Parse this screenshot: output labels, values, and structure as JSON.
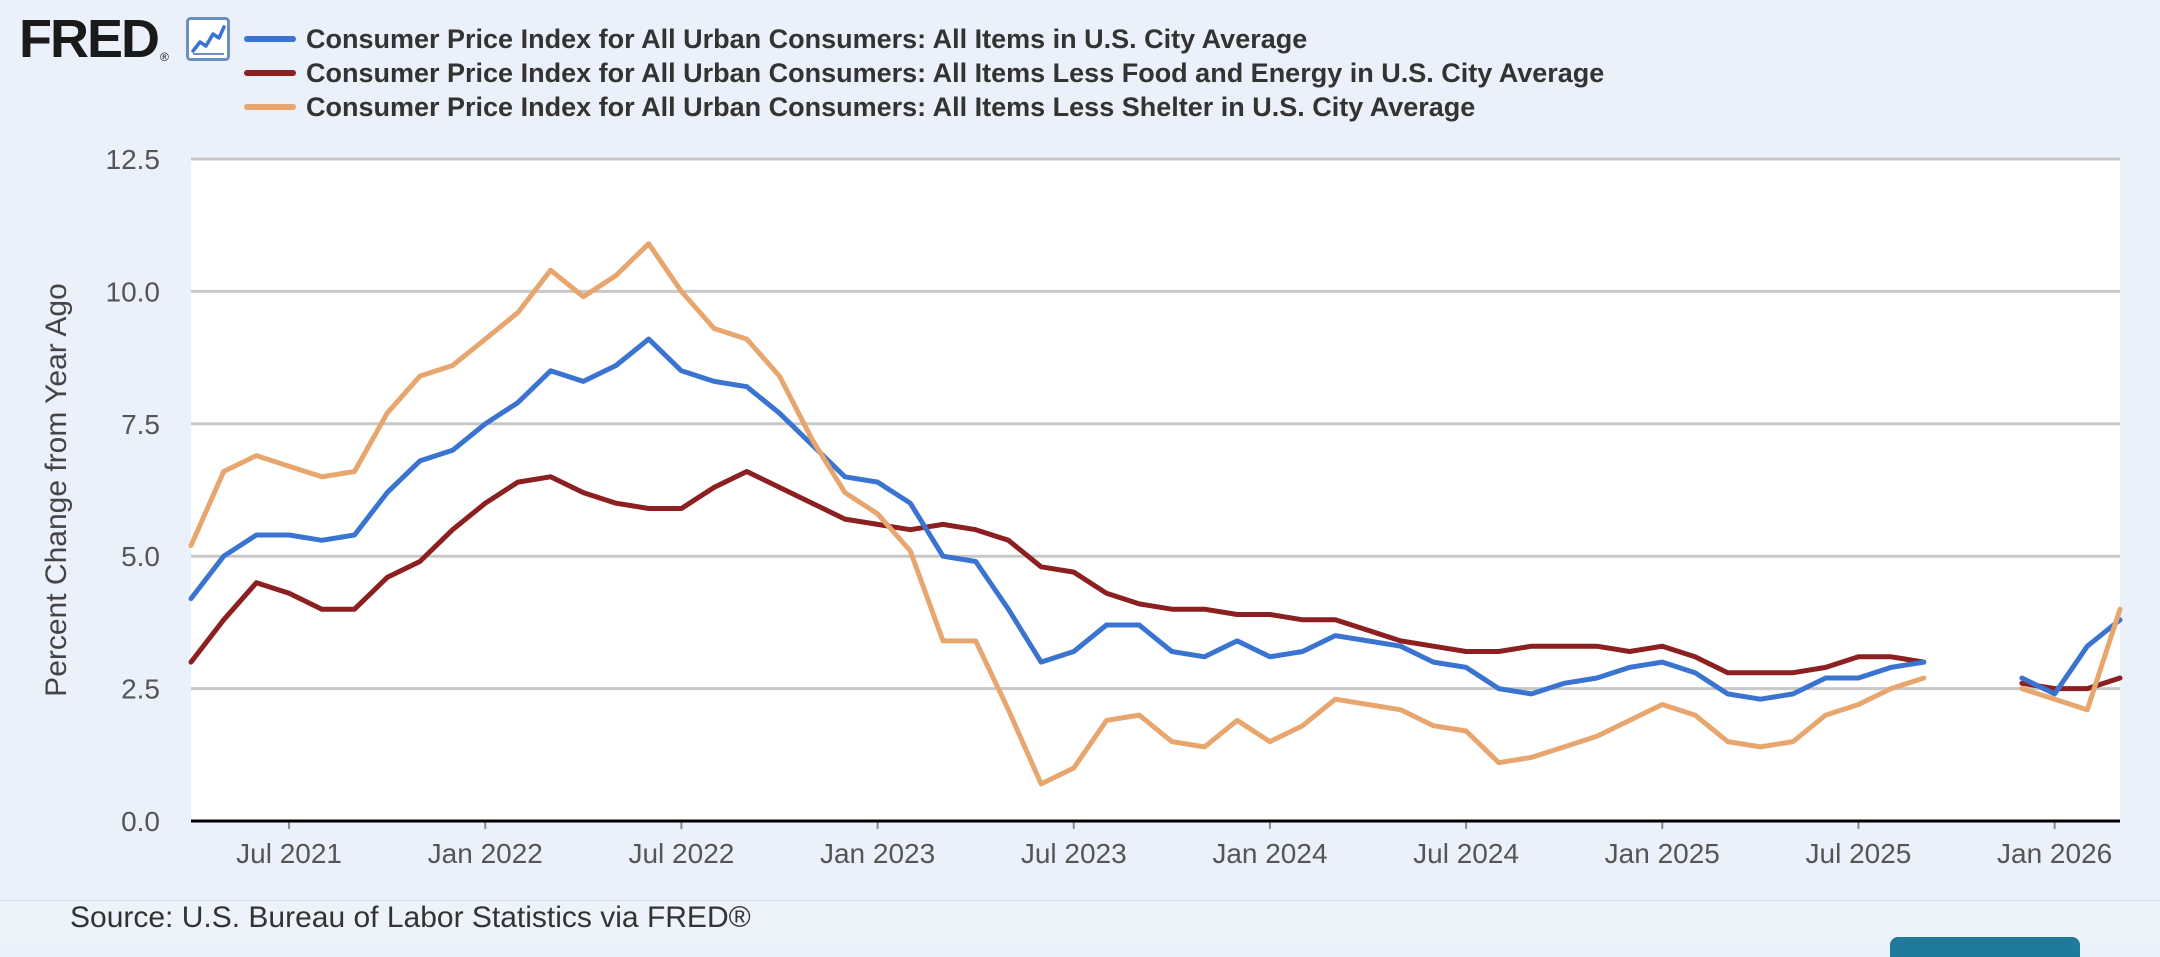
{
  "logo": {
    "text": "FRED",
    "registered": "®"
  },
  "icons": {
    "chart": "line-chart-icon"
  },
  "legend": [
    {
      "label": "Consumer Price Index for All Urban Consumers: All Items in U.S. City Average",
      "color": "#3a74d0"
    },
    {
      "label": "Consumer Price Index for All Urban Consumers: All Items Less Food and Energy in U.S. City Average",
      "color": "#8c1f1f"
    },
    {
      "label": "Consumer Price Index for All Urban Consumers: All Items Less Shelter in U.S. City Average",
      "color": "#e8a66f"
    }
  ],
  "source": "Source: U.S. Bureau of Labor Statistics via FRED®",
  "chart_data": {
    "type": "line",
    "ylabel": "Percent Change from Year Ago",
    "xlabel": "",
    "ylim": [
      0,
      12.5
    ],
    "yticks": [
      "0.0",
      "2.5",
      "5.0",
      "7.5",
      "10.0",
      "12.5"
    ],
    "xlim": [
      "2021-04",
      "2026-03"
    ],
    "xticks": [
      {
        "date": "2021-07",
        "label": "Jul 2021"
      },
      {
        "date": "2022-01",
        "label": "Jan 2022"
      },
      {
        "date": "2022-07",
        "label": "Jul 2022"
      },
      {
        "date": "2023-01",
        "label": "Jan 2023"
      },
      {
        "date": "2023-07",
        "label": "Jul 2023"
      },
      {
        "date": "2024-01",
        "label": "Jan 2024"
      },
      {
        "date": "2024-07",
        "label": "Jul 2024"
      },
      {
        "date": "2025-01",
        "label": "Jan 2025"
      },
      {
        "date": "2025-07",
        "label": "Jul 2025"
      },
      {
        "date": "2026-01",
        "label": "Jan 2026"
      }
    ],
    "grid": true,
    "legend_position": "top",
    "x": [
      "2021-04",
      "2021-05",
      "2021-06",
      "2021-07",
      "2021-08",
      "2021-09",
      "2021-10",
      "2021-11",
      "2021-12",
      "2022-01",
      "2022-02",
      "2022-03",
      "2022-04",
      "2022-05",
      "2022-06",
      "2022-07",
      "2022-08",
      "2022-09",
      "2022-10",
      "2022-11",
      "2022-12",
      "2023-01",
      "2023-02",
      "2023-03",
      "2023-04",
      "2023-05",
      "2023-06",
      "2023-07",
      "2023-08",
      "2023-09",
      "2023-10",
      "2023-11",
      "2023-12",
      "2024-01",
      "2024-02",
      "2024-03",
      "2024-04",
      "2024-05",
      "2024-06",
      "2024-07",
      "2024-08",
      "2024-09",
      "2024-10",
      "2024-11",
      "2024-12",
      "2025-01",
      "2025-02",
      "2025-03",
      "2025-04",
      "2025-05",
      "2025-06",
      "2025-07",
      "2025-08",
      "2025-09",
      "2025-10",
      "2025-11",
      "2025-12",
      "2026-01",
      "2026-02",
      "2026-03"
    ],
    "series": [
      {
        "name": "Consumer Price Index for All Urban Consumers: All Items in U.S. City Average",
        "color": "#3a74d0",
        "values": [
          4.2,
          5.0,
          5.4,
          5.4,
          5.3,
          5.4,
          6.2,
          6.8,
          7.0,
          7.5,
          7.9,
          8.5,
          8.3,
          8.6,
          9.1,
          8.5,
          8.3,
          8.2,
          7.7,
          7.1,
          6.5,
          6.4,
          6.0,
          5.0,
          4.9,
          4.0,
          3.0,
          3.2,
          3.7,
          3.7,
          3.2,
          3.1,
          3.4,
          3.1,
          3.2,
          3.5,
          3.4,
          3.3,
          3.0,
          2.9,
          2.5,
          2.4,
          2.6,
          2.7,
          2.9,
          3.0,
          2.8,
          2.4,
          2.3,
          2.4,
          2.7,
          2.7,
          2.9,
          3.0,
          null,
          null,
          2.7,
          2.4,
          3.3,
          3.8
        ]
      },
      {
        "name": "Consumer Price Index for All Urban Consumers: All Items Less Food and Energy in U.S. City Average",
        "color": "#8c1f1f",
        "values": [
          3.0,
          3.8,
          4.5,
          4.3,
          4.0,
          4.0,
          4.6,
          4.9,
          5.5,
          6.0,
          6.4,
          6.5,
          6.2,
          6.0,
          5.9,
          5.9,
          6.3,
          6.6,
          6.3,
          6.0,
          5.7,
          5.6,
          5.5,
          5.6,
          5.5,
          5.3,
          4.8,
          4.7,
          4.3,
          4.1,
          4.0,
          4.0,
          3.9,
          3.9,
          3.8,
          3.8,
          3.6,
          3.4,
          3.3,
          3.2,
          3.2,
          3.3,
          3.3,
          3.3,
          3.2,
          3.3,
          3.1,
          2.8,
          2.8,
          2.8,
          2.9,
          3.1,
          3.1,
          3.0,
          null,
          null,
          2.6,
          2.5,
          2.5,
          2.7
        ]
      },
      {
        "name": "Consumer Price Index for All Urban Consumers: All Items Less Shelter in U.S. City Average",
        "color": "#e8a66f",
        "values": [
          5.2,
          6.6,
          6.9,
          6.7,
          6.5,
          6.6,
          7.7,
          8.4,
          8.6,
          9.1,
          9.6,
          10.4,
          9.9,
          10.3,
          10.9,
          10.0,
          9.3,
          9.1,
          8.4,
          7.2,
          6.2,
          5.8,
          5.1,
          3.4,
          3.4,
          2.1,
          0.7,
          1.0,
          1.9,
          2.0,
          1.5,
          1.4,
          1.9,
          1.5,
          1.8,
          2.3,
          2.2,
          2.1,
          1.8,
          1.7,
          1.1,
          1.2,
          1.4,
          1.6,
          1.9,
          2.2,
          2.0,
          1.5,
          1.4,
          1.5,
          2.0,
          2.2,
          2.5,
          2.7,
          null,
          null,
          2.5,
          2.3,
          2.1,
          4.0
        ]
      }
    ]
  }
}
